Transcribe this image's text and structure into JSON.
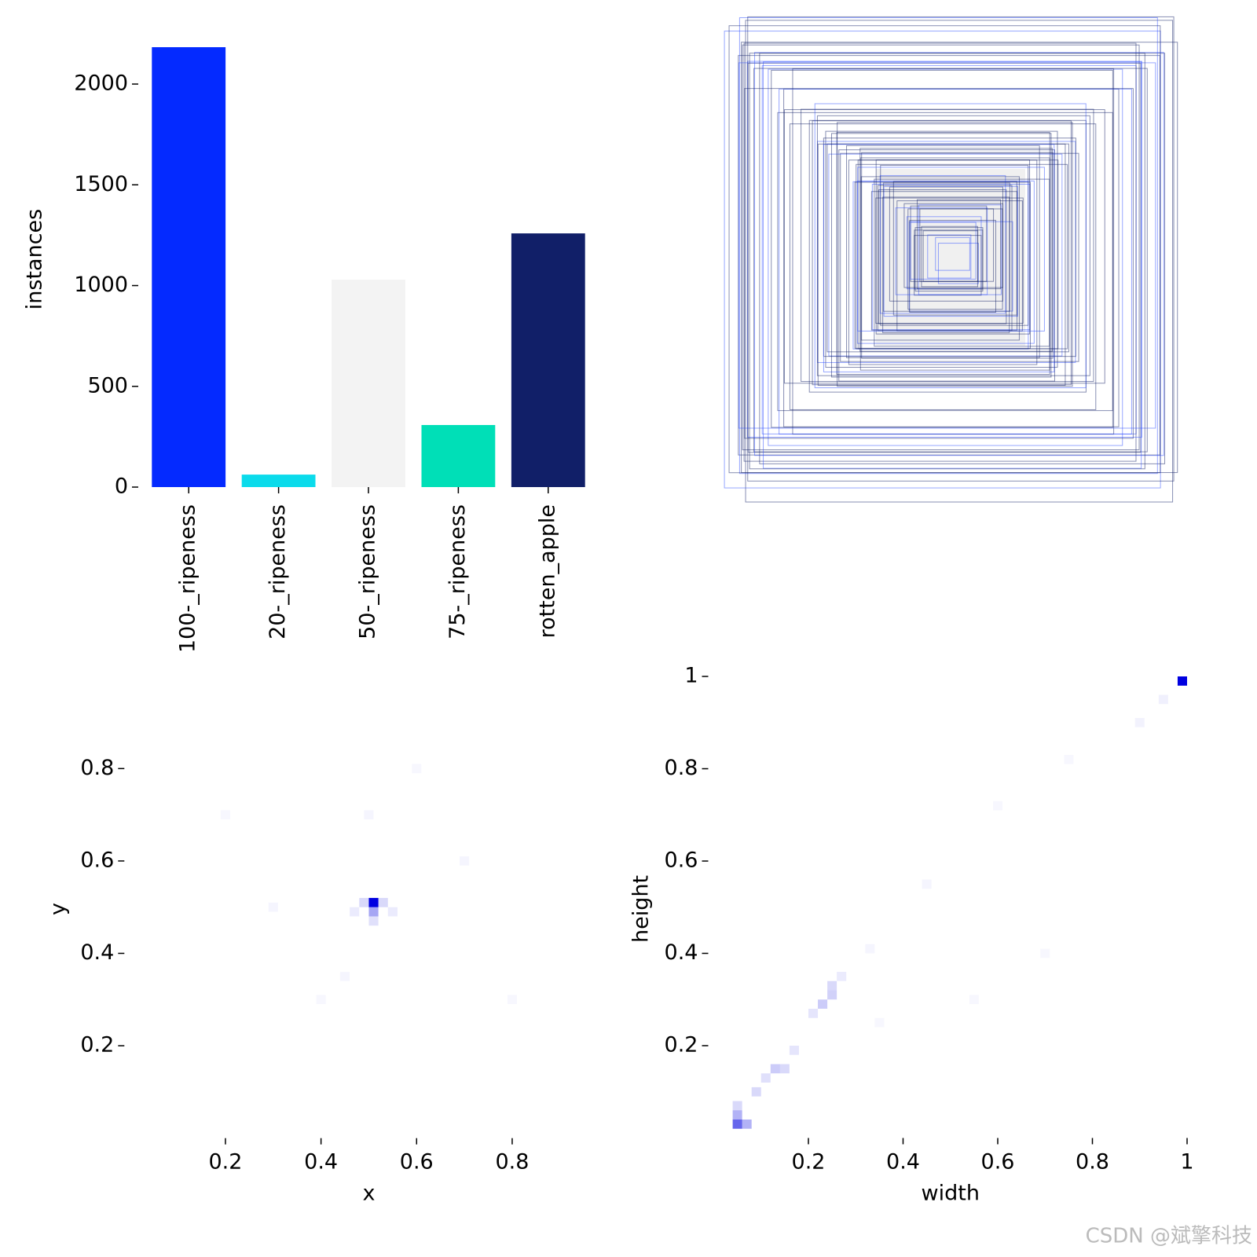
{
  "chart_data": [
    {
      "type": "bar",
      "ylabel": "instances",
      "categories": [
        "100-_ripeness",
        "20-_ripeness",
        "50-_ripeness",
        "75-_ripeness",
        "rotten_apple"
      ],
      "values": [
        2183,
        62,
        1029,
        308,
        1259
      ],
      "colors": [
        "#042aff",
        "#0bdbeb",
        "#f3f3f3",
        "#00dfb7",
        "#111f68"
      ],
      "ylim": [
        0,
        2200
      ],
      "yticks": [
        0,
        500,
        1000,
        1500,
        2000
      ]
    },
    {
      "type": "hist2d",
      "xlabel": "x",
      "ylabel": "y",
      "color": "#0000e0",
      "x": [
        0.51,
        0.51,
        0.49,
        0.53,
        0.51,
        0.47,
        0.55,
        0.3,
        0.7,
        0.4,
        0.6,
        0.2,
        0.8,
        0.5,
        0.45
      ],
      "y": [
        0.51,
        0.49,
        0.51,
        0.51,
        0.47,
        0.49,
        0.49,
        0.5,
        0.6,
        0.3,
        0.8,
        0.7,
        0.3,
        0.7,
        0.35
      ],
      "values": [
        1.0,
        0.35,
        0.15,
        0.15,
        0.12,
        0.08,
        0.08,
        0.04,
        0.04,
        0.03,
        0.03,
        0.03,
        0.03,
        0.04,
        0.04
      ],
      "xlim": [
        0,
        1
      ],
      "ylim": [
        0,
        1
      ],
      "xticks": [
        0.2,
        0.4,
        0.6,
        0.8
      ],
      "yticks": [
        0.2,
        0.4,
        0.6,
        0.8
      ]
    },
    {
      "type": "hist2d",
      "xlabel": "width",
      "ylabel": "height",
      "color": "#0000e0",
      "x": [
        0.99,
        0.05,
        0.07,
        0.05,
        0.05,
        0.09,
        0.13,
        0.15,
        0.11,
        0.17,
        0.23,
        0.25,
        0.25,
        0.21,
        0.27,
        0.33,
        0.45,
        0.6,
        0.75,
        0.9,
        0.95,
        0.7,
        0.55,
        0.35
      ],
      "y": [
        0.99,
        0.03,
        0.03,
        0.05,
        0.07,
        0.1,
        0.15,
        0.15,
        0.13,
        0.19,
        0.29,
        0.31,
        0.33,
        0.27,
        0.35,
        0.41,
        0.55,
        0.72,
        0.82,
        0.9,
        0.95,
        0.4,
        0.3,
        0.25
      ],
      "values": [
        1.0,
        0.6,
        0.3,
        0.3,
        0.15,
        0.15,
        0.2,
        0.15,
        0.12,
        0.1,
        0.2,
        0.18,
        0.15,
        0.1,
        0.08,
        0.04,
        0.04,
        0.03,
        0.03,
        0.05,
        0.06,
        0.03,
        0.03,
        0.03
      ],
      "xlim": [
        0,
        1
      ],
      "ylim": [
        0,
        1
      ],
      "xticks": [
        0.2,
        0.4,
        0.6,
        0.8,
        1.0
      ],
      "yticks": [
        0.2,
        0.4,
        0.6,
        0.8,
        1.0
      ]
    }
  ],
  "watermark": "CSDN @斌擎科技"
}
